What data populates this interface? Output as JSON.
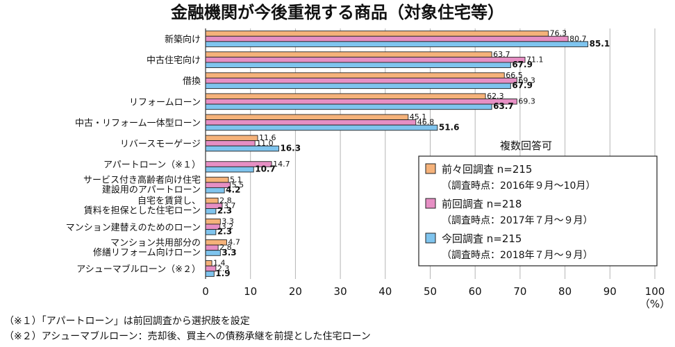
{
  "chart_data": {
    "type": "bar",
    "orientation": "horizontal",
    "title": "金融機関が今後重視する商品（対象住宅等）",
    "categories": [
      [
        "新築向け"
      ],
      [
        "中古住宅向け"
      ],
      [
        "借換"
      ],
      [
        "リフォームローン"
      ],
      [
        "中古・リフォーム一体型ローン"
      ],
      [
        "リバースモーゲージ"
      ],
      [
        "アパートローン（※１）"
      ],
      [
        "サービス付き高齢者向け住宅",
        "建設用のアパートローン"
      ],
      [
        "自宅を賃貸し、",
        "賃料を担保とした住宅ローン"
      ],
      [
        "マンション建替えのためのローン"
      ],
      [
        "マンション共用部分の",
        "修繕リフォーム向けローン"
      ],
      [
        "アシューマブルローン（※２）"
      ]
    ],
    "series": [
      {
        "name": "前々回調査 n=215",
        "period": "（調査時点：2016年９月〜10月）",
        "color": "#f5b27a",
        "values": [
          76.3,
          63.7,
          66.5,
          62.3,
          45.1,
          11.6,
          null,
          5.1,
          2.8,
          3.3,
          4.7,
          1.4
        ],
        "labels": [
          "76.3",
          "63.7",
          "66.5",
          "62.3",
          "45.1",
          "11.6",
          "",
          "5.1",
          "2.8",
          "3.3",
          "4.7",
          "1.4"
        ]
      },
      {
        "name": "前回調査 n=218",
        "period": "（調査時点：2017年７月〜９月）",
        "color": "#e68fc4",
        "values": [
          80.7,
          71.1,
          69.3,
          69.3,
          46.8,
          11.0,
          14.7,
          5.5,
          3.7,
          3.2,
          2.8,
          2.3
        ],
        "labels": [
          "80.7",
          "71.1",
          "69.3",
          "69.3",
          "46.8",
          "11.0",
          "14.7",
          "5.5",
          "3.7",
          "3.2",
          "2.8",
          "2.3"
        ]
      },
      {
        "name": "今回調査 n=215",
        "period": "（調査時点：2018年７月〜９月）",
        "color": "#7fc4ee",
        "values": [
          85.1,
          67.9,
          67.9,
          63.7,
          51.6,
          16.3,
          10.7,
          4.2,
          2.3,
          2.3,
          3.3,
          1.9
        ],
        "labels": [
          "85.1",
          "67.9",
          "67.9",
          "63.7",
          "51.6",
          "16.3",
          "10.7",
          "4.2",
          "2.3",
          "2.3",
          "3.3",
          "1.9"
        ]
      }
    ],
    "xlim": [
      0,
      100
    ],
    "xticks": [
      "0",
      "10",
      "20",
      "30",
      "40",
      "50",
      "60",
      "70",
      "80",
      "90",
      "100"
    ],
    "xunit": "（%）",
    "grid": true,
    "legend_note": "複数回答可",
    "legend_position": "right",
    "footnotes": [
      "（※１）「アパートローン」は前回調査から選択肢を設定",
      "（※２）アシューマブルローン：売却後、買主への債務承継を前提とした住宅ローン"
    ]
  }
}
